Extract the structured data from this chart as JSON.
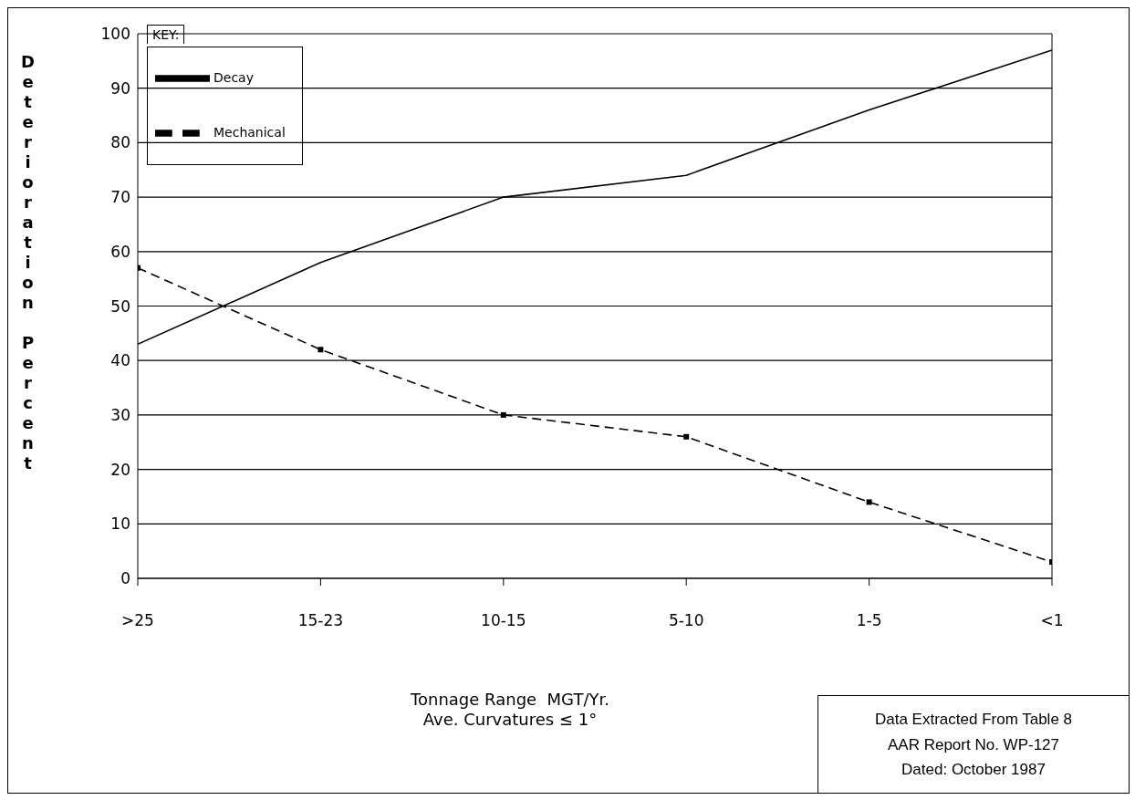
{
  "chart_data": {
    "type": "line",
    "ylabel": "Deterioration Percent",
    "xlabel": "Tonnage Range  MGT/Yr.\nAve. Curvatures ≤ 1°",
    "legend_title": "KEY:",
    "categories": [
      ">25",
      "15-23",
      "10-15",
      "5-10",
      "1-5",
      "<1"
    ],
    "series": [
      {
        "name": "Decay",
        "color": "#000000",
        "values": [
          43,
          58,
          70,
          74,
          86,
          97
        ],
        "line_style": "solid",
        "marker": "none"
      },
      {
        "name": "Mechanical",
        "color": "#000000",
        "values": [
          57,
          42,
          30,
          26,
          14,
          3
        ],
        "line_style": "dashed",
        "marker": "square"
      }
    ],
    "ylim": [
      0,
      100
    ],
    "yticks": [
      0,
      10,
      20,
      30,
      40,
      50,
      60,
      70,
      80,
      90,
      100
    ],
    "grid": "y",
    "legend": "top left",
    "annotations": [
      "Data Extracted From Table 8\nAAR Report No. WP-127\nDated: October 1987"
    ]
  }
}
